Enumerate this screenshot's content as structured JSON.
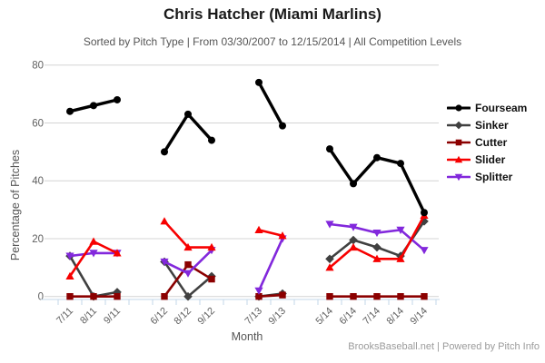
{
  "chart_data": {
    "type": "line",
    "title": "Chris Hatcher (Miami Marlins)",
    "subtitle": "Sorted by Pitch Type | From 03/30/2007 to 12/15/2014 | All Competition Levels",
    "xlabel": "Month",
    "ylabel": "Percentage of Pitches",
    "ylim": [
      0,
      80
    ],
    "yticks": [
      0,
      20,
      40,
      60,
      80
    ],
    "grid": true,
    "legend_position": "right",
    "categories": [
      "7/11",
      "8/11",
      "9/11",
      "6/12",
      "8/12",
      "9/12",
      "7/13",
      "9/13",
      "5/14",
      "6/14",
      "7/14",
      "8/14",
      "9/14"
    ],
    "category_slots": [
      0,
      1,
      2,
      4,
      5,
      6,
      8,
      9,
      11,
      12,
      13,
      14,
      15
    ],
    "total_slots": 16,
    "segments": [
      [
        0,
        2
      ],
      [
        3,
        5
      ],
      [
        6,
        7
      ],
      [
        8,
        12
      ]
    ],
    "series": [
      {
        "name": "Fourseam",
        "color": "#000000",
        "marker": "circle",
        "line_width": 3.4,
        "values": [
          64,
          66,
          68,
          50,
          63,
          54,
          74,
          59,
          51,
          39,
          48,
          46,
          29
        ]
      },
      {
        "name": "Sinker",
        "color": "#404040",
        "marker": "diamond",
        "line_width": 2.6,
        "values": [
          14,
          0,
          1.5,
          12,
          0,
          7,
          0,
          1,
          13,
          19.5,
          17,
          14,
          26
        ]
      },
      {
        "name": "Cutter",
        "color": "#8b0000",
        "marker": "square",
        "line_width": 2.6,
        "values": [
          0,
          0,
          0,
          0,
          11,
          6,
          0,
          0.5,
          0,
          0,
          0,
          0,
          0
        ]
      },
      {
        "name": "Slider",
        "color": "#f70000",
        "marker": "triangle",
        "line_width": 2.6,
        "values": [
          7,
          19,
          15,
          26,
          17,
          17,
          23,
          21,
          10,
          17,
          13,
          13,
          28
        ]
      },
      {
        "name": "Splitter",
        "color": "#8228dc",
        "marker": "triangle-down",
        "line_width": 2.6,
        "values": [
          14,
          15,
          15,
          12,
          8,
          16,
          2,
          20,
          25,
          24,
          22,
          23,
          16
        ]
      }
    ],
    "axis_colors": {
      "grid": "#d4d4d4",
      "axis_line": "#c3d7ea",
      "tick_label": "#606060"
    }
  },
  "footer": {
    "credit": "BrooksBaseball.net | Powered by Pitch Info"
  }
}
